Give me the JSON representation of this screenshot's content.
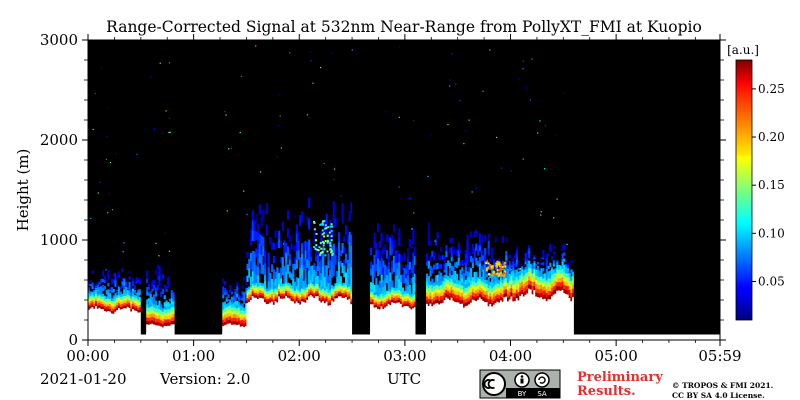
{
  "chart_data": {
    "type": "heatmap",
    "title": "Range-Corrected Signal at 532nm Near-Range from PollyXT_FMI at Kuopio",
    "xlabel": "UTC",
    "ylabel": "Height (m)",
    "xlim_hours": [
      0,
      5.9833
    ],
    "ylim": [
      0,
      3000
    ],
    "x_ticks": [
      {
        "label": "00:00",
        "value": 0
      },
      {
        "label": "01:00",
        "value": 1
      },
      {
        "label": "02:00",
        "value": 2
      },
      {
        "label": "03:00",
        "value": 3
      },
      {
        "label": "04:00",
        "value": 4
      },
      {
        "label": "05:00",
        "value": 5
      },
      {
        "label": "05:59",
        "value": 5.9833
      }
    ],
    "y_ticks": [
      {
        "label": "0",
        "value": 0
      },
      {
        "label": "1000",
        "value": 1000
      },
      {
        "label": "2000",
        "value": 2000
      },
      {
        "label": "3000",
        "value": 3000
      }
    ],
    "colorbar": {
      "unit_label": "[a.u.]",
      "range": [
        0.01,
        0.28
      ],
      "ticks": [
        {
          "label": "0.05",
          "value": 0.05
        },
        {
          "label": "0.10",
          "value": 0.1
        },
        {
          "label": "0.15",
          "value": 0.15
        },
        {
          "label": "0.20",
          "value": 0.2
        },
        {
          "label": "0.25",
          "value": 0.25
        }
      ],
      "colormap": "jet"
    },
    "no_data_color": "#000000",
    "saturated_color": "#ffffff",
    "signal_segments": [
      {
        "start": 0.0,
        "end": 0.5,
        "base_top": 300,
        "signal_top": 450,
        "aerosol_top": 700
      },
      {
        "start": 0.55,
        "end": 0.82,
        "base_top": 150,
        "signal_top": 350,
        "aerosol_top": 700
      },
      {
        "start": 1.27,
        "end": 1.5,
        "base_top": 150,
        "signal_top": 350,
        "aerosol_top": 600
      },
      {
        "start": 1.5,
        "end": 2.5,
        "base_top": 400,
        "signal_top": 550,
        "aerosol_top": 1300
      },
      {
        "start": 2.67,
        "end": 3.1,
        "base_top": 350,
        "signal_top": 500,
        "aerosol_top": 1100
      },
      {
        "start": 3.2,
        "end": 4.0,
        "base_top": 380,
        "signal_top": 600,
        "aerosol_top": 1100
      },
      {
        "start": 4.0,
        "end": 4.6,
        "base_top": 450,
        "signal_top": 700,
        "aerosol_top": 900
      }
    ],
    "no_data_gaps": [
      {
        "start": 0.5,
        "end": 0.55
      },
      {
        "start": 0.82,
        "end": 1.27
      },
      {
        "start": 2.5,
        "end": 2.67
      },
      {
        "start": 3.1,
        "end": 3.2
      },
      {
        "start": 4.6,
        "end": 5.9833
      }
    ],
    "cloud_features": [
      {
        "time": 2.22,
        "height_low": 850,
        "height_high": 1200,
        "value": 0.13
      },
      {
        "time": 3.85,
        "height_low": 650,
        "height_high": 800,
        "value": 0.2
      }
    ]
  },
  "footer": {
    "date": "2021-01-20",
    "version": "Version: 2.0",
    "time_axis": "UTC",
    "license_badge": [
      "cc-icon",
      "by-icon",
      "sa-icon"
    ],
    "badge_text_by": "BY",
    "badge_text_sa": "SA",
    "preliminary_line1": "Preliminary",
    "preliminary_line2": "Results.",
    "copyright_line1": "© TROPOS & FMI 2021.",
    "copyright_line2": "CC BY SA 4.0 License.",
    "preliminary_color": "#e03030"
  }
}
